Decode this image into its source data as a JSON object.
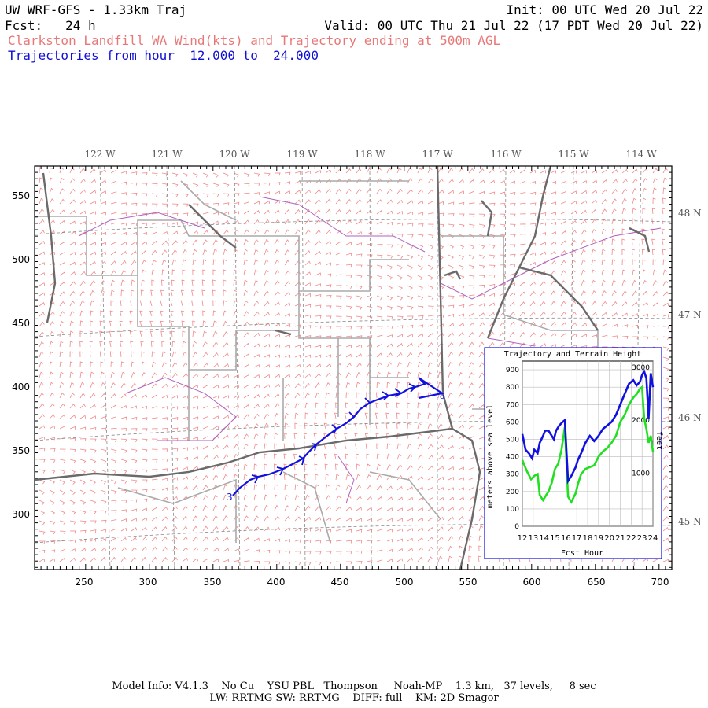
{
  "header": {
    "title": "UW WRF-GFS - 1.33km Traj",
    "init": "Init: 00 UTC Wed 20 Jul 22",
    "fcst": "Fcst:   24 h",
    "valid": "Valid: 00 UTC Thu 21 Jul 22 (17 PDT Wed 20 Jul 22)",
    "subtitle": "Clarkston Landfill WA Wind(kts) and Trajectory ending at 500m AGL",
    "traj_range": "Trajectories from hour  12.000 to  24.000"
  },
  "map": {
    "lon_labels": [
      "122 W",
      "121 W",
      "120 W",
      "119 W",
      "118 W",
      "117 W",
      "116 W",
      "115 W",
      "114 W"
    ],
    "lat_labels": [
      "48 N",
      "47 N",
      "46 N",
      "45 N"
    ],
    "x_ticks": [
      "250",
      "300",
      "350",
      "400",
      "450",
      "500",
      "550",
      "600",
      "650",
      "700"
    ],
    "y_ticks": [
      "550",
      "500",
      "450",
      "400",
      "350",
      "300"
    ],
    "start_marker": "3",
    "end_marker": "o"
  },
  "inset": {
    "title": "Trajectory and Terrain Height",
    "ylabel_left": "meters above sea level",
    "ylabel_right": "feet",
    "xlabel": "Fcst Hour",
    "y_ticks_m": [
      "0",
      "100",
      "200",
      "300",
      "400",
      "500",
      "600",
      "700",
      "800",
      "900"
    ],
    "y_ticks_ft": [
      "1000",
      "2000",
      "3000"
    ],
    "x_ticks": [
      "12",
      "13",
      "14",
      "15",
      "16",
      "17",
      "18",
      "19",
      "20",
      "21",
      "22",
      "23",
      "24"
    ],
    "colors": {
      "trajectory": "#1010e0",
      "terrain": "#20e020"
    }
  },
  "chart_data": {
    "type": "line",
    "title": "Trajectory and Terrain Height",
    "xlabel": "Fcst Hour",
    "ylabel": "meters above sea level",
    "xlim": [
      12,
      24
    ],
    "ylim": [
      0,
      950
    ],
    "series": [
      {
        "x": [
          12.0,
          12.3,
          12.6,
          12.9,
          13.1,
          13.4,
          13.6,
          13.9,
          14.1,
          14.4,
          14.7,
          14.9,
          15.1,
          15.4,
          15.7,
          15.9,
          16.2,
          16.5,
          16.9,
          17.1,
          17.4,
          17.8,
          18.2,
          18.6,
          19.0,
          19.4,
          19.8,
          20.2,
          20.6,
          21.0,
          21.4,
          21.8,
          22.2,
          22.5,
          22.8,
          23.0,
          23.2,
          23.4,
          23.6,
          23.8,
          24.0
        ],
        "values": [
          530,
          440,
          420,
          390,
          440,
          420,
          480,
          520,
          550,
          550,
          520,
          500,
          550,
          580,
          600,
          610,
          260,
          290,
          340,
          380,
          420,
          480,
          520,
          490,
          520,
          560,
          580,
          600,
          640,
          700,
          760,
          820,
          840,
          810,
          830,
          870,
          890,
          850,
          620,
          880,
          800
        ]
      },
      {
        "x": [
          12.0,
          12.4,
          12.8,
          13.1,
          13.4,
          13.6,
          13.9,
          14.1,
          14.4,
          14.7,
          15.0,
          15.3,
          15.6,
          15.9,
          16.2,
          16.5,
          16.9,
          17.1,
          17.4,
          17.8,
          18.2,
          18.6,
          19.0,
          19.4,
          19.8,
          20.2,
          20.6,
          21.0,
          21.4,
          21.8,
          22.2,
          22.5,
          22.8,
          23.0,
          23.2,
          23.4,
          23.6,
          23.8,
          24.0
        ],
        "values": [
          380,
          320,
          270,
          290,
          300,
          180,
          150,
          170,
          200,
          250,
          330,
          360,
          440,
          570,
          170,
          140,
          190,
          240,
          300,
          330,
          340,
          350,
          400,
          430,
          450,
          480,
          520,
          600,
          640,
          700,
          740,
          760,
          790,
          800,
          620,
          560,
          480,
          520,
          430
        ]
      }
    ]
  }
}
